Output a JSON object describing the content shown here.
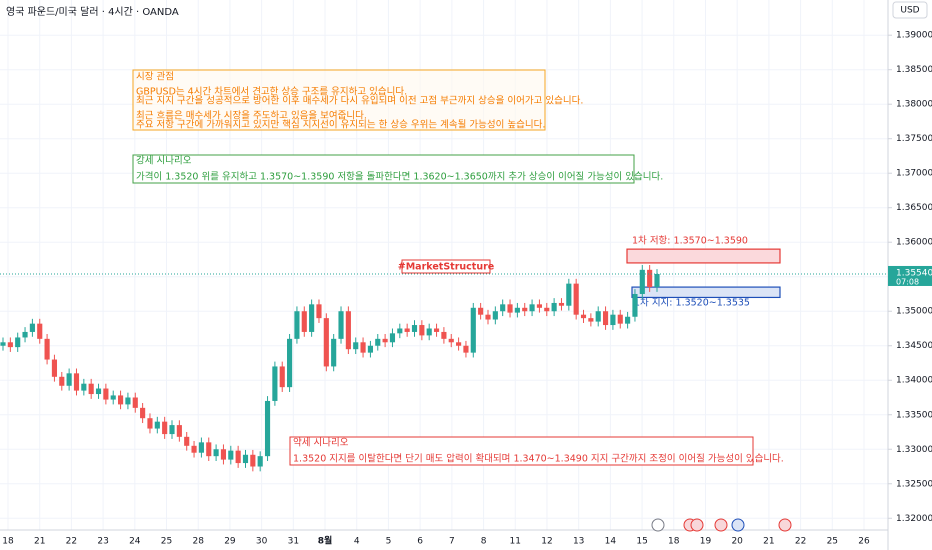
{
  "header": {
    "symbol": "영국 파운드/미국 달러 · 4시간 · OANDA",
    "currency": "USD"
  },
  "chart_data": {
    "type": "candlestick",
    "up_color": "#26a69a",
    "down_color": "#ef5350",
    "grid": true,
    "ylim": [
      1.3183,
      1.3951
    ],
    "yticks": [
      {
        "value": 1.32,
        "label": "1.32000"
      },
      {
        "value": 1.325,
        "label": "1.32500"
      },
      {
        "value": 1.33,
        "label": "1.33000"
      },
      {
        "value": 1.335,
        "label": "1.33500"
      },
      {
        "value": 1.34,
        "label": "1.34000"
      },
      {
        "value": 1.345,
        "label": "1.34500"
      },
      {
        "value": 1.35,
        "label": "1.35000"
      },
      {
        "value": 1.355,
        "label": "1.35500"
      },
      {
        "value": 1.36,
        "label": "1.36000"
      },
      {
        "value": 1.365,
        "label": "1.36500"
      },
      {
        "value": 1.37,
        "label": "1.37000"
      },
      {
        "value": 1.375,
        "label": "1.37500"
      },
      {
        "value": 1.38,
        "label": "1.38000"
      },
      {
        "value": 1.385,
        "label": "1.38500"
      },
      {
        "value": 1.39,
        "label": "1.39000"
      }
    ],
    "x_labels": [
      "18",
      "21",
      "22",
      "23",
      "24",
      "25",
      "28",
      "29",
      "30",
      "31",
      "8월",
      "4",
      "5",
      "6",
      "7",
      "8",
      "11",
      "12",
      "13",
      "14",
      "15",
      "18",
      "19",
      "20",
      "21",
      "22",
      "25",
      "26"
    ],
    "last_price_label": "1.35540",
    "countdown": "07:08",
    "candles": [
      [
        1.345,
        1.3462,
        1.3443,
        1.3455
      ],
      [
        1.3455,
        1.3462,
        1.3441,
        1.3448
      ],
      [
        1.3448,
        1.3469,
        1.3441,
        1.3462
      ],
      [
        1.3462,
        1.3477,
        1.3455,
        1.347
      ],
      [
        1.347,
        1.3489,
        1.3463,
        1.3482
      ],
      [
        1.3482,
        1.3489,
        1.3453,
        1.346
      ],
      [
        1.346,
        1.3467,
        1.3423,
        1.343
      ],
      [
        1.343,
        1.3437,
        1.3398,
        1.3405
      ],
      [
        1.3405,
        1.3412,
        1.3385,
        1.3392
      ],
      [
        1.3392,
        1.3417,
        1.3385,
        1.341
      ],
      [
        1.341,
        1.3417,
        1.3378,
        1.3385
      ],
      [
        1.3385,
        1.3402,
        1.3378,
        1.3395
      ],
      [
        1.3395,
        1.3402,
        1.3373,
        1.338
      ],
      [
        1.338,
        1.3395,
        1.3373,
        1.3388
      ],
      [
        1.3388,
        1.3395,
        1.3365,
        1.3372
      ],
      [
        1.3372,
        1.3385,
        1.3365,
        1.3378
      ],
      [
        1.3378,
        1.3385,
        1.3358,
        1.3365
      ],
      [
        1.3365,
        1.3382,
        1.3358,
        1.3375
      ],
      [
        1.3375,
        1.3382,
        1.3353,
        1.336
      ],
      [
        1.336,
        1.3367,
        1.3338,
        1.3345
      ],
      [
        1.3345,
        1.3352,
        1.3323,
        1.333
      ],
      [
        1.333,
        1.3347,
        1.3323,
        1.334
      ],
      [
        1.334,
        1.3347,
        1.3315,
        1.3322
      ],
      [
        1.3322,
        1.3342,
        1.3315,
        1.3335
      ],
      [
        1.3335,
        1.3342,
        1.3311,
        1.3318
      ],
      [
        1.3318,
        1.3325,
        1.3298,
        1.3305
      ],
      [
        1.3305,
        1.3312,
        1.3288,
        1.3295
      ],
      [
        1.3295,
        1.3317,
        1.3288,
        1.331
      ],
      [
        1.331,
        1.3317,
        1.3283,
        1.329
      ],
      [
        1.329,
        1.3307,
        1.3283,
        1.33
      ],
      [
        1.33,
        1.3307,
        1.3278,
        1.3285
      ],
      [
        1.3285,
        1.3305,
        1.3278,
        1.3298
      ],
      [
        1.3298,
        1.3305,
        1.3273,
        1.328
      ],
      [
        1.328,
        1.3299,
        1.3273,
        1.3292
      ],
      [
        1.3292,
        1.3299,
        1.3268,
        1.3275
      ],
      [
        1.3275,
        1.3297,
        1.3268,
        1.329
      ],
      [
        1.329,
        1.3377,
        1.3283,
        1.337
      ],
      [
        1.337,
        1.3427,
        1.3363,
        1.342
      ],
      [
        1.342,
        1.3427,
        1.3383,
        1.339
      ],
      [
        1.339,
        1.3467,
        1.3383,
        1.346
      ],
      [
        1.346,
        1.3507,
        1.3453,
        1.35
      ],
      [
        1.35,
        1.3507,
        1.3463,
        1.347
      ],
      [
        1.347,
        1.3517,
        1.3463,
        1.351
      ],
      [
        1.351,
        1.3517,
        1.3483,
        1.349
      ],
      [
        1.349,
        1.3497,
        1.3413,
        1.342
      ],
      [
        1.342,
        1.3467,
        1.3413,
        1.346
      ],
      [
        1.346,
        1.3507,
        1.3453,
        1.35
      ],
      [
        1.35,
        1.3507,
        1.3438,
        1.3445
      ],
      [
        1.3445,
        1.3462,
        1.3438,
        1.3455
      ],
      [
        1.3455,
        1.3462,
        1.3433,
        1.344
      ],
      [
        1.344,
        1.3457,
        1.3433,
        1.345
      ],
      [
        1.345,
        1.3467,
        1.3443,
        1.346
      ],
      [
        1.346,
        1.3467,
        1.3448,
        1.3455
      ],
      [
        1.3455,
        1.3475,
        1.3448,
        1.3468
      ],
      [
        1.3468,
        1.3482,
        1.3461,
        1.3475
      ],
      [
        1.3475,
        1.3482,
        1.3463,
        1.347
      ],
      [
        1.347,
        1.3487,
        1.3463,
        1.348
      ],
      [
        1.348,
        1.3487,
        1.3458,
        1.3465
      ],
      [
        1.3465,
        1.3482,
        1.3458,
        1.3475
      ],
      [
        1.3475,
        1.3482,
        1.3463,
        1.347
      ],
      [
        1.347,
        1.3477,
        1.3453,
        1.346
      ],
      [
        1.346,
        1.3467,
        1.3448,
        1.3455
      ],
      [
        1.3455,
        1.3462,
        1.3443,
        1.345
      ],
      [
        1.345,
        1.3457,
        1.3433,
        1.344
      ],
      [
        1.344,
        1.3512,
        1.3433,
        1.3505
      ],
      [
        1.3505,
        1.3512,
        1.3488,
        1.3495
      ],
      [
        1.3495,
        1.3502,
        1.3481,
        1.3488
      ],
      [
        1.3488,
        1.3507,
        1.3481,
        1.35
      ],
      [
        1.35,
        1.3517,
        1.3493,
        1.351
      ],
      [
        1.351,
        1.3517,
        1.3491,
        1.3498
      ],
      [
        1.3498,
        1.3512,
        1.3491,
        1.3505
      ],
      [
        1.3505,
        1.3512,
        1.3493,
        1.35
      ],
      [
        1.35,
        1.3517,
        1.3493,
        1.351
      ],
      [
        1.351,
        1.3517,
        1.3498,
        1.3505
      ],
      [
        1.3505,
        1.3512,
        1.3493,
        1.35
      ],
      [
        1.35,
        1.3519,
        1.3493,
        1.3512
      ],
      [
        1.3512,
        1.3519,
        1.3501,
        1.3508
      ],
      [
        1.3508,
        1.3547,
        1.3501,
        1.354
      ],
      [
        1.354,
        1.3547,
        1.3488,
        1.3495
      ],
      [
        1.3495,
        1.3502,
        1.3483,
        1.349
      ],
      [
        1.349,
        1.3497,
        1.3478,
        1.3485
      ],
      [
        1.3485,
        1.3507,
        1.3478,
        1.35
      ],
      [
        1.35,
        1.3507,
        1.3473,
        1.348
      ],
      [
        1.348,
        1.3502,
        1.3473,
        1.3495
      ],
      [
        1.3495,
        1.3502,
        1.3475,
        1.3482
      ],
      [
        1.3482,
        1.3499,
        1.3475,
        1.3492
      ],
      [
        1.3492,
        1.3532,
        1.3485,
        1.3525
      ],
      [
        1.3525,
        1.3567,
        1.3518,
        1.356
      ],
      [
        1.356,
        1.3567,
        1.3528,
        1.3535
      ],
      [
        1.3535,
        1.3561,
        1.3528,
        1.3554
      ]
    ]
  },
  "annotations": {
    "market_view": {
      "title": "시장 관점",
      "lines": [
        "GBPUSD는 4시간 차트에서 견고한 상승 구조를 유지하고 있습니다.",
        "최근 지지 구간을 성공적으로 방어한 이후 매수세가 다시 유입되며 이전 고점 부근까지 상승을 이어가고 있습니다.",
        "최근 흐름은 매수세가 시장을 주도하고 있음을 보여줍니다.",
        "주요 저항 구간에 가까워지고 있지만 핵심 지지선이 유지되는 한 상승 우위는 계속될 가능성이 높습니다."
      ]
    },
    "bullish": {
      "title": "강세 시나리오",
      "text": "가격이 1.3520 위를 유지하고 1.3570~1.3590 저항을 돌파한다면 1.3620~1.3650까지 추가 상승이 이어질 가능성이 있습니다."
    },
    "tag": "#MarketStructure",
    "bearish": {
      "title": "약세 시나리오",
      "text": "1.3520 지지를 이탈한다면 단기 매도 압력이 확대되며 1.3470~1.3490 지지 구간까지 조정이 이어질 가능성이 있습니다."
    },
    "resistance": {
      "label": "1차 저항: 1.3570~1.3590",
      "low": 1.357,
      "high": 1.359
    },
    "support": {
      "label": "1차 지지: 1.3520~1.3535",
      "low": 1.352,
      "high": 1.3535
    }
  }
}
